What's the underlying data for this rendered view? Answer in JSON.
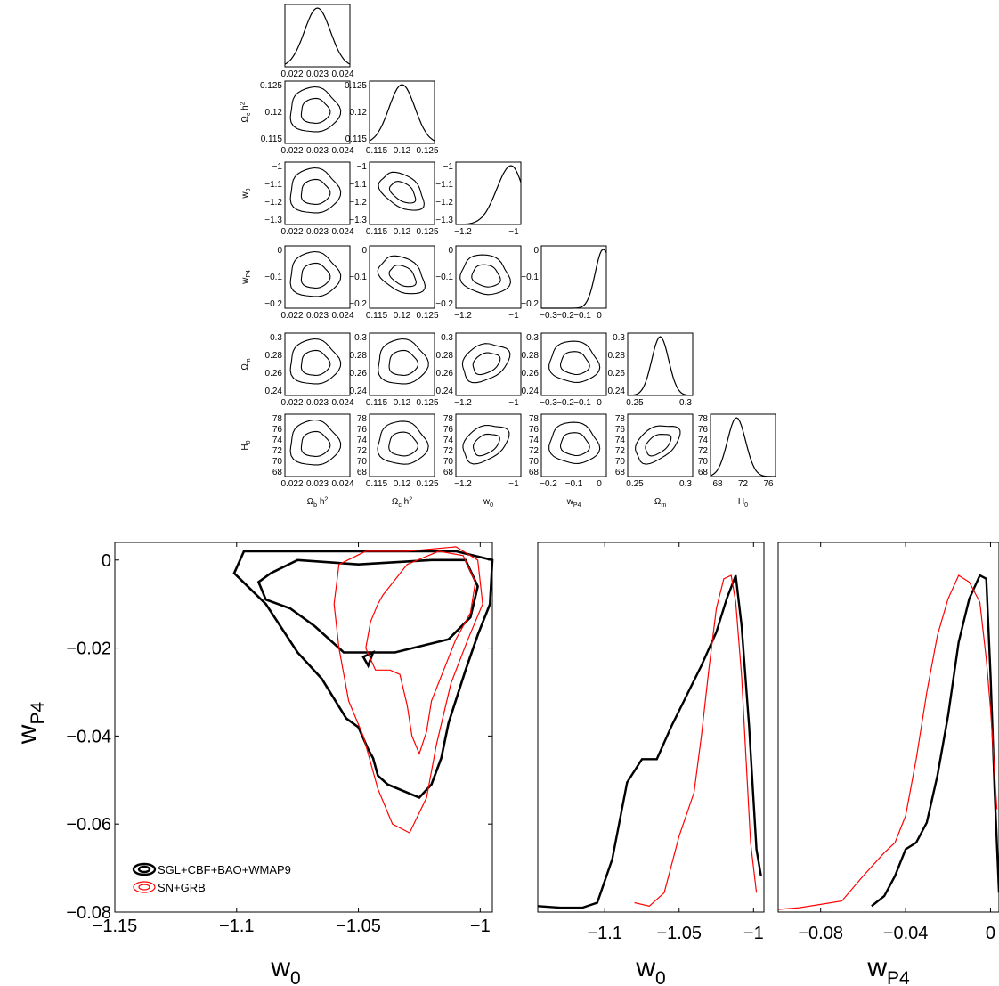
{
  "chart_data": [
    {
      "type": "corner",
      "parameters": [
        "Ω_b h²",
        "Ω_c h²",
        "w_0",
        "w_P4",
        "Ω_m",
        "H_0"
      ],
      "axis_labels": {
        "rows": [
          {
            "main": "Ω",
            "sub": "c",
            "tail": " h",
            "sup": "2"
          },
          {
            "main": "w",
            "sub": "0",
            "tail": "",
            "sup": ""
          },
          {
            "main": "w",
            "sub": "P4",
            "tail": "",
            "sup": ""
          },
          {
            "main": "Ω",
            "sub": "m",
            "tail": "",
            "sup": ""
          },
          {
            "main": "H",
            "sub": "0",
            "tail": "",
            "sup": ""
          }
        ],
        "cols": [
          {
            "main": "Ω",
            "sub": "b",
            "tail": " h",
            "sup": "2"
          },
          {
            "main": "Ω",
            "sub": "c",
            "tail": " h",
            "sup": "2"
          },
          {
            "main": "w",
            "sub": "0",
            "tail": "",
            "sup": ""
          },
          {
            "main": "w",
            "sub": "P4",
            "tail": "",
            "sup": ""
          },
          {
            "main": "Ω",
            "sub": "m",
            "tail": "",
            "sup": ""
          },
          {
            "main": "H",
            "sub": "0",
            "tail": "",
            "sup": ""
          }
        ]
      },
      "xticks": [
        [
          "0.022",
          "0.023",
          "0.024"
        ],
        [
          "0.115",
          "0.12",
          "0.125"
        ],
        [
          "−1.2",
          "−1"
        ],
        [
          "−0.3",
          "−0.2",
          "−0.1",
          "0"
        ],
        [
          "0.25",
          "0.3"
        ],
        [
          "68",
          "72",
          "76"
        ]
      ],
      "yticks": [
        [],
        [
          "0.125",
          "0.12",
          "0.115"
        ],
        [
          "−1",
          "−1.1",
          "−1.2",
          "−1.3"
        ],
        [
          "0",
          "−0.1",
          "−0.2"
        ],
        [
          "0.3",
          "0.28",
          "0.26",
          "0.24"
        ],
        [
          "78",
          "76",
          "74",
          "72",
          "70",
          "68"
        ]
      ],
      "xticks_lower": [
        [
          "0.022",
          "0.023",
          "0.024"
        ],
        [
          "0.115",
          "0.12",
          "0.125"
        ],
        [
          "−1.2",
          "−1"
        ],
        [
          "−0.2",
          "−0.1",
          "0"
        ],
        [
          "0.25",
          "0.3"
        ],
        [
          "68",
          "72",
          "76"
        ]
      ]
    },
    {
      "type": "contour",
      "xlabel": {
        "main": "w",
        "sub": "0"
      },
      "ylabel": {
        "main": "w",
        "sub": "P4"
      },
      "xlim": [
        -1.15,
        -0.995
      ],
      "ylim": [
        -0.08,
        0.004
      ],
      "xticks": [
        "−1.15",
        "−1.1",
        "−1.05",
        "−1"
      ],
      "yticks": [
        "0",
        "−0.02",
        "−0.04",
        "−0.06",
        "−0.08"
      ],
      "xtick_values": [
        -1.15,
        -1.1,
        -1.05,
        -1.0
      ],
      "ytick_values": [
        0,
        -0.02,
        -0.04,
        -0.06,
        -0.08
      ],
      "legend_position": "bottom-left",
      "series": [
        {
          "name": "SGL+CBF+BAO+WMAP9",
          "color": "#000000",
          "contours": [
            [
              [
                -1.086,
                -0.003
              ],
              [
                -1.075,
                0.0
              ],
              [
                -1.05,
                -0.001
              ],
              [
                -1.02,
                0.0
              ],
              [
                -1.006,
                0.0
              ],
              [
                -1.001,
                -0.006
              ],
              [
                -1.004,
                -0.013
              ],
              [
                -1.013,
                -0.018
              ],
              [
                -1.035,
                -0.021
              ],
              [
                -1.056,
                -0.021
              ],
              [
                -1.068,
                -0.015
              ],
              [
                -1.078,
                -0.011
              ],
              [
                -1.088,
                -0.009
              ],
              [
                -1.091,
                -0.005
              ],
              [
                -1.086,
                -0.003
              ]
            ],
            [
              [
                -1.097,
                0.002
              ],
              [
                -1.073,
                0.002
              ],
              [
                -1.04,
                0.002
              ],
              [
                -1.01,
                0.002
              ],
              [
                -0.995,
                0.0
              ],
              [
                -0.996,
                -0.01
              ],
              [
                -1.001,
                -0.017
              ],
              [
                -1.006,
                -0.025
              ],
              [
                -1.013,
                -0.037
              ],
              [
                -1.016,
                -0.045
              ],
              [
                -1.02,
                -0.051
              ],
              [
                -1.025,
                -0.054
              ],
              [
                -1.038,
                -0.051
              ],
              [
                -1.042,
                -0.049
              ],
              [
                -1.044,
                -0.045
              ],
              [
                -1.046,
                -0.043
              ],
              [
                -1.05,
                -0.038
              ],
              [
                -1.055,
                -0.036
              ],
              [
                -1.065,
                -0.027
              ],
              [
                -1.075,
                -0.021
              ],
              [
                -1.088,
                -0.01
              ],
              [
                -1.101,
                -0.003
              ],
              [
                -1.097,
                0.002
              ]
            ],
            [
              [
                -1.048,
                -0.022
              ],
              [
                -1.046,
                -0.024
              ],
              [
                -1.044,
                -0.021
              ],
              [
                -1.048,
                -0.022
              ]
            ]
          ]
        },
        {
          "name": "SN+GRB",
          "color": "#ff0000",
          "contours": [
            [
              [
                -1.04,
                -0.008
              ],
              [
                -1.03,
                -0.001
              ],
              [
                -1.017,
                0.002
              ],
              [
                -1.007,
                0.001
              ],
              [
                -1.002,
                -0.005
              ],
              [
                -1.004,
                -0.012
              ],
              [
                -1.01,
                -0.018
              ],
              [
                -1.015,
                -0.025
              ],
              [
                -1.02,
                -0.032
              ],
              [
                -1.022,
                -0.039
              ],
              [
                -1.025,
                -0.044
              ],
              [
                -1.028,
                -0.04
              ],
              [
                -1.03,
                -0.033
              ],
              [
                -1.033,
                -0.026
              ],
              [
                -1.037,
                -0.025
              ],
              [
                -1.043,
                -0.025
              ],
              [
                -1.047,
                -0.02
              ],
              [
                -1.045,
                -0.014
              ],
              [
                -1.042,
                -0.01
              ],
              [
                -1.04,
                -0.008
              ]
            ],
            [
              [
                -1.058,
                -0.001
              ],
              [
                -1.047,
                0.002
              ],
              [
                -1.03,
                0.002
              ],
              [
                -1.01,
                0.003
              ],
              [
                -1.001,
                0.0
              ],
              [
                -0.999,
                -0.01
              ],
              [
                -1.005,
                -0.018
              ],
              [
                -1.012,
                -0.028
              ],
              [
                -1.018,
                -0.042
              ],
              [
                -1.022,
                -0.054
              ],
              [
                -1.029,
                -0.062
              ],
              [
                -1.036,
                -0.06
              ],
              [
                -1.042,
                -0.052
              ],
              [
                -1.048,
                -0.04
              ],
              [
                -1.054,
                -0.032
              ],
              [
                -1.058,
                -0.02
              ],
              [
                -1.06,
                -0.01
              ],
              [
                -1.058,
                -0.001
              ]
            ]
          ]
        }
      ]
    },
    {
      "type": "line",
      "xlabel": {
        "main": "w",
        "sub": "0"
      },
      "xlim": [
        -1.145,
        -0.993
      ],
      "xticks": [
        "−1.1",
        "−1.05",
        "−1"
      ],
      "xtick_values": [
        -1.1,
        -1.05,
        -1.0
      ],
      "series": [
        {
          "name": "SGL+CBF+BAO+WMAP9",
          "color": "#000000",
          "x": [
            -1.145,
            -1.13,
            -1.115,
            -1.105,
            -1.095,
            -1.085,
            -1.075,
            -1.065,
            -1.055,
            -1.045,
            -1.035,
            -1.025,
            -1.018,
            -1.012,
            -1.008,
            -1.003,
            -0.998,
            -0.995
          ],
          "y": [
            0.01,
            0.005,
            0.005,
            0.02,
            0.15,
            0.38,
            0.45,
            0.45,
            0.55,
            0.64,
            0.73,
            0.83,
            0.93,
            1.0,
            0.85,
            0.55,
            0.18,
            0.1
          ]
        },
        {
          "name": "SN+GRB",
          "color": "#ff0000",
          "x": [
            -1.08,
            -1.07,
            -1.06,
            -1.05,
            -1.04,
            -1.035,
            -1.03,
            -1.025,
            -1.02,
            -1.015,
            -1.012,
            -1.008,
            -1.005,
            -1.002,
            -0.998
          ],
          "y": [
            0.02,
            0.01,
            0.05,
            0.22,
            0.35,
            0.52,
            0.72,
            0.9,
            0.99,
            1.0,
            0.92,
            0.7,
            0.45,
            0.2,
            0.05
          ]
        }
      ]
    },
    {
      "type": "line",
      "xlabel": {
        "main": "w",
        "sub": "P4"
      },
      "xlim": [
        -0.1,
        0.004
      ],
      "xticks": [
        "−0.08",
        "−0.04",
        "0"
      ],
      "xtick_values": [
        -0.08,
        -0.04,
        0
      ],
      "series": [
        {
          "name": "SGL+CBF+BAO+WMAP9",
          "color": "#000000",
          "x": [
            -0.056,
            -0.05,
            -0.045,
            -0.04,
            -0.035,
            -0.03,
            -0.025,
            -0.02,
            -0.015,
            -0.01,
            -0.005,
            -0.002,
            0.0,
            0.002,
            0.004
          ],
          "y": [
            0.01,
            0.04,
            0.1,
            0.18,
            0.2,
            0.26,
            0.4,
            0.58,
            0.8,
            0.93,
            1.0,
            0.99,
            0.7,
            0.35,
            0.05
          ]
        },
        {
          "name": "SN+GRB",
          "color": "#ff0000",
          "x": [
            -0.1,
            -0.09,
            -0.08,
            -0.07,
            -0.06,
            -0.05,
            -0.045,
            -0.04,
            -0.035,
            -0.03,
            -0.025,
            -0.02,
            -0.015,
            -0.01,
            -0.005,
            -0.002,
            0.0,
            0.003
          ],
          "y": [
            0.0,
            0.005,
            0.015,
            0.025,
            0.1,
            0.17,
            0.2,
            0.28,
            0.45,
            0.65,
            0.82,
            0.93,
            1.0,
            0.98,
            0.92,
            0.75,
            0.6,
            0.3
          ]
        }
      ]
    }
  ]
}
